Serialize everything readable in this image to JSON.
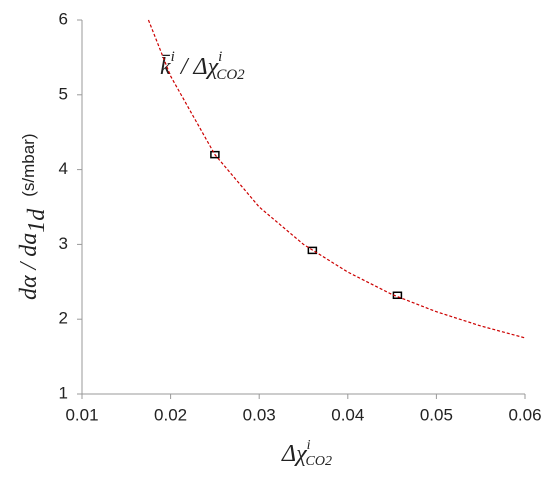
{
  "chart_data": {
    "type": "scatter",
    "annotation": {
      "base": "k̄",
      "sup": "i",
      "mid": " / Δχ",
      "sup2": "i",
      "sub": "CO2"
    },
    "x_label": {
      "base": "Δχ",
      "sup": "i",
      "sub": "CO2"
    },
    "y_label": {
      "base": "dα / da",
      "sub": "1d",
      "unit": "(s/mbar)"
    },
    "xlim": [
      0.01,
      0.06
    ],
    "xticks": [
      0.01,
      0.02,
      0.03,
      0.04,
      0.05,
      0.06
    ],
    "ylim": [
      1,
      6
    ],
    "yticks": [
      1,
      2,
      3,
      4,
      5,
      6
    ],
    "grid": false,
    "series": [
      {
        "type": "scatter",
        "color": "#000000",
        "x": [
          0.025,
          0.036,
          0.0456
        ],
        "values": [
          4.2,
          2.92,
          2.32
        ]
      },
      {
        "type": "line",
        "color": "#cc0000",
        "dashed": true,
        "x": [
          0.0175,
          0.02,
          0.025,
          0.03,
          0.035,
          0.04,
          0.045,
          0.05,
          0.055,
          0.06
        ],
        "values": [
          6.0,
          5.25,
          4.2,
          3.5,
          3.0,
          2.63,
          2.33,
          2.1,
          1.91,
          1.75
        ]
      }
    ]
  }
}
